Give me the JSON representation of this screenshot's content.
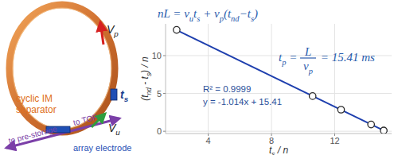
{
  "chart_data": {
    "type": "scatter",
    "x_label": [
      {
        "text": "t"
      },
      {
        "sub": "s"
      },
      {
        "text": " / n"
      }
    ],
    "y_label": [
      {
        "text": "(t"
      },
      {
        "sub": "nd"
      },
      {
        "text": " - t"
      },
      {
        "sub": "s"
      },
      {
        "text": ") / n"
      }
    ],
    "xlim": [
      1.3,
      15.6
    ],
    "ylim": [
      -0.3,
      14.2
    ],
    "xticks": [
      4,
      8,
      12
    ],
    "yticks": [
      0,
      5,
      10
    ],
    "grid": true,
    "series": [
      {
        "type": "scatter",
        "marker": "circle",
        "color": "#2b2b2b",
        "x": [
          2,
          10.6,
          12.4,
          14.3,
          15.1
        ],
        "values": [
          13.4,
          4.65,
          2.85,
          0.9,
          0.1
        ]
      },
      {
        "type": "line",
        "line_style": "solid",
        "color": "#1e3fae",
        "x": [
          1.9,
          15.3
        ],
        "values": [
          13.48,
          -0.1
        ]
      }
    ],
    "annotations": [
      "R² = 0.9999",
      "y = -1.014x + 15.41"
    ],
    "period_formula": {
      "lhs": [
        {
          "text": "t"
        },
        {
          "sub": "p"
        },
        {
          "text": " = "
        }
      ],
      "numerator": "L",
      "denominator": [
        {
          "text": "v"
        },
        {
          "sub": "p"
        }
      ],
      "rhs": " = 15.41 ms"
    }
  },
  "diagram": {
    "equation": [
      {
        "text": "nL = v"
      },
      {
        "sub": "u"
      },
      {
        "text": "t"
      },
      {
        "sub": "s"
      },
      {
        "text": " + v"
      },
      {
        "sub": "p"
      },
      {
        "text": "(t"
      },
      {
        "sub": "nd"
      },
      {
        "text": "−t"
      },
      {
        "sub": "s"
      },
      {
        "text": ")"
      }
    ],
    "ring_label": [
      "cyclic IM",
      "separator"
    ],
    "vp_label": [
      {
        "text": "V"
      },
      {
        "sub": "p"
      }
    ],
    "vu_label": [
      {
        "text": "V"
      },
      {
        "sub": "u"
      }
    ],
    "ts_label": [
      {
        "text": "t"
      },
      {
        "sub": "s"
      }
    ],
    "electrode_label": "array electrode",
    "tof_label": "to TOF",
    "prestorage_label": "to pre-storage"
  }
}
